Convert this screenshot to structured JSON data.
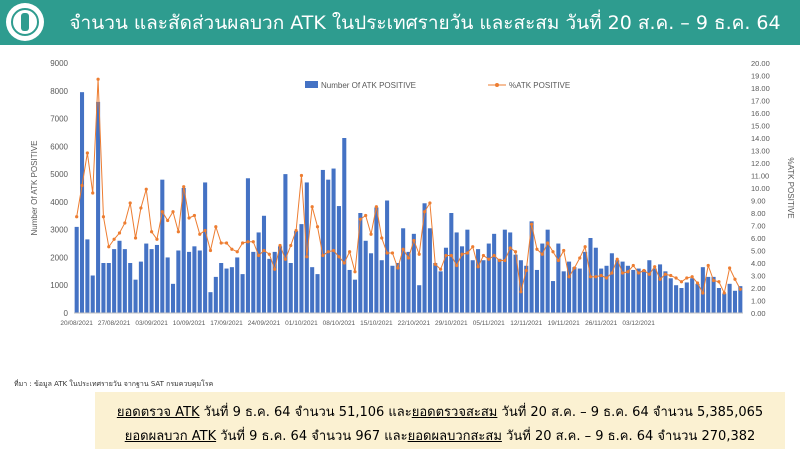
{
  "header": {
    "title": "จำนวน และสัดส่วนผลบวก ATK ในประเทศรายวัน และสะสม วันที่ 20 ส.ค. – 9 ธ.ค. 64",
    "bg": "#2e9c8f"
  },
  "source_note": "ที่มา : ข้อมูล ATK ในประเทศรายวัน จากฐาน SAT กรมควบคุมโรค",
  "footer": {
    "line1": {
      "a": "ยอดตรวจ ATK",
      "b": " วันที่ 9 ธ.ค. 64 จำนวน 51,106 และ",
      "c": "ยอดตรวจสะสม",
      "d": " วันที่ 20 ส.ค. – 9 ธ.ค. 64 จำนวน 5,385,065"
    },
    "line2": {
      "a": "ยอดผลบวก ATK",
      "b": " วันที่ 9 ธ.ค. 64 จำนวน 967 และ",
      "c": "ยอดผลบวกสะสม",
      "d": " วันที่ 20 ส.ค. – 9 ธ.ค. 64 จำนวน 270,382"
    },
    "bg": "#fbf1d2"
  },
  "chart_data": {
    "type": "bar+line",
    "title": "",
    "ylabel_left": "Number Of ATK POSITIVE",
    "ylabel_right": "%ATK POSITIVE",
    "ylim_left": [
      0,
      9000
    ],
    "ylim_right": [
      0,
      20
    ],
    "yticks_left": [
      "0",
      "1000",
      "2000",
      "3000",
      "4000",
      "5000",
      "6000",
      "7000",
      "8000",
      "9000"
    ],
    "yticks_right": [
      "0.00",
      "1.00",
      "2.00",
      "3.00",
      "4.00",
      "5.00",
      "6.00",
      "7.00",
      "8.00",
      "9.00",
      "10.00",
      "11.00",
      "12.00",
      "13.00",
      "14.00",
      "15.00",
      "16.00",
      "17.00",
      "18.00",
      "19.00",
      "20.00"
    ],
    "xtick_labels": [
      "20/08/2021",
      "27/08/2021",
      "03/09/2021",
      "10/09/2021",
      "17/09/2021",
      "24/09/2021",
      "01/10/2021",
      "08/10/2021",
      "15/10/2021",
      "22/10/2021",
      "29/10/2021",
      "05/11/2021",
      "12/11/2021",
      "19/11/2021",
      "26/11/2021",
      "03/12/2021"
    ],
    "legend": [
      "Number Of ATK POSITIVE",
      "%ATK POSITIVE"
    ],
    "legend_position": "top",
    "bar_color": "#4472c4",
    "line_color": "#ed7d31",
    "series": [
      {
        "name": "Number Of ATK POSITIVE",
        "type": "bar",
        "values": [
          3100,
          7950,
          2650,
          1350,
          7600,
          1800,
          1800,
          2300,
          2600,
          2300,
          1800,
          1200,
          1850,
          2500,
          2300,
          2450,
          4800,
          2000,
          1050,
          2250,
          4500,
          2200,
          2400,
          2250,
          4700,
          750,
          1300,
          1800,
          1600,
          1650,
          2000,
          1400,
          4850,
          2200,
          2900,
          3500,
          1950,
          2200,
          2400,
          5000,
          1800,
          2950,
          3200,
          4700,
          1650,
          1400,
          5150,
          4800,
          5200,
          3850,
          6300,
          1550,
          1200,
          3600,
          2600,
          2150,
          3800,
          1900,
          4050,
          1700,
          1800,
          3050,
          2200,
          2850,
          1000,
          3950,
          3050,
          1800,
          1500,
          2350,
          3600,
          2900,
          2400,
          3000,
          1900,
          2300,
          1900,
          2500,
          2850,
          1950,
          3000,
          2900,
          2100,
          1900,
          1700,
          3300,
          1550,
          2500,
          3000,
          1150,
          2500,
          1500,
          1850,
          1650,
          1600,
          2200,
          2700,
          2350,
          1600,
          1700,
          2150,
          1900,
          1850,
          1700,
          1550,
          1600,
          1550,
          1900,
          1600,
          1750,
          1500,
          1250,
          1000,
          900,
          1100,
          1250,
          1050,
          1650,
          1300,
          1300,
          900,
          700,
          1050,
          800,
          967
        ]
      },
      {
        "name": "%ATK POSITIVE",
        "type": "line",
        "values": [
          7.7,
          10.2,
          12.8,
          9.6,
          18.7,
          7.7,
          5.3,
          5.9,
          6.4,
          7.2,
          8.8,
          6.0,
          8.4,
          9.9,
          6.5,
          5.9,
          8.1,
          7.4,
          8.1,
          6.5,
          10.1,
          7.6,
          7.8,
          6.3,
          6.6,
          5.0,
          6.9,
          5.6,
          5.6,
          5.1,
          4.9,
          5.6,
          5.7,
          5.7,
          4.6,
          5.0,
          4.7,
          3.5,
          5.4,
          4.3,
          5.4,
          6.6,
          11.0,
          4.5,
          8.5,
          6.9,
          4.6,
          4.9,
          5.0,
          4.5,
          4.0,
          4.9,
          3.3,
          7.5,
          7.8,
          6.3,
          8.5,
          6.0,
          4.8,
          4.8,
          3.6,
          5.1,
          4.4,
          5.8,
          4.7,
          8.1,
          8.8,
          3.9,
          3.5,
          4.6,
          4.6,
          3.8,
          4.7,
          4.8,
          5.3,
          3.7,
          4.6,
          4.3,
          4.6,
          4.2,
          4.2,
          5.2,
          4.9,
          1.7,
          3.4,
          7.1,
          5.1,
          4.7,
          5.6,
          4.9,
          4.2,
          5.0,
          2.9,
          3.6,
          4.4,
          5.3,
          2.9,
          2.9,
          3.0,
          2.8,
          3.2,
          4.3,
          3.2,
          3.3,
          3.8,
          3.2,
          3.4,
          3.1,
          3.7,
          2.7,
          3.1,
          3.0,
          2.8,
          2.5,
          2.8,
          2.9,
          2.4,
          1.6,
          3.8,
          2.6,
          2.5,
          1.6,
          3.6,
          2.7,
          1.9
        ]
      }
    ]
  }
}
